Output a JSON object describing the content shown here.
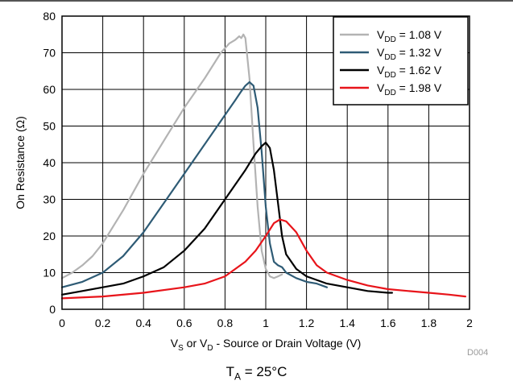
{
  "chart_data": {
    "type": "line",
    "xlabel": {
      "prefix_sym1": "V",
      "sub1": "S",
      "middle": " or ",
      "prefix_sym2": "V",
      "sub2": "D",
      "suffix": " - Source or Drain Voltage (V)"
    },
    "ylabel": "On Resistance (Ω)",
    "xlim": [
      0,
      2
    ],
    "ylim": [
      0,
      80
    ],
    "x_ticks": [
      "0",
      "0.2",
      "0.4",
      "0.6",
      "0.8",
      "1",
      "1.2",
      "1.4",
      "1.6",
      "1.8",
      "2"
    ],
    "y_ticks": [
      "0",
      "10",
      "20",
      "30",
      "40",
      "50",
      "60",
      "70",
      "80"
    ],
    "grid": true,
    "legend_position": "top-right",
    "series": [
      {
        "name_sym": "V",
        "name_sub": "DD",
        "name_val": " = 1.08 V",
        "color": "#b3b3b3",
        "points": [
          [
            0,
            8.5
          ],
          [
            0.05,
            10
          ],
          [
            0.1,
            12
          ],
          [
            0.15,
            14.5
          ],
          [
            0.2,
            18
          ],
          [
            0.3,
            27
          ],
          [
            0.4,
            37
          ],
          [
            0.5,
            46
          ],
          [
            0.6,
            55
          ],
          [
            0.7,
            63
          ],
          [
            0.78,
            70
          ],
          [
            0.82,
            72.5
          ],
          [
            0.85,
            73.5
          ],
          [
            0.87,
            74.5
          ],
          [
            0.88,
            74
          ],
          [
            0.89,
            75
          ],
          [
            0.9,
            74
          ],
          [
            0.92,
            63
          ],
          [
            0.94,
            45
          ],
          [
            0.96,
            28
          ],
          [
            0.98,
            16
          ],
          [
            1.0,
            11
          ],
          [
            1.02,
            9
          ],
          [
            1.04,
            8.5
          ],
          [
            1.06,
            9
          ],
          [
            1.08,
            9.5
          ]
        ]
      },
      {
        "name_sym": "V",
        "name_sub": "DD",
        "name_val": " = 1.32 V",
        "color": "#2e5b75",
        "points": [
          [
            0,
            6
          ],
          [
            0.1,
            7.5
          ],
          [
            0.2,
            10
          ],
          [
            0.3,
            14.5
          ],
          [
            0.4,
            21
          ],
          [
            0.5,
            29
          ],
          [
            0.6,
            37
          ],
          [
            0.7,
            45
          ],
          [
            0.8,
            53
          ],
          [
            0.85,
            57
          ],
          [
            0.88,
            59.5
          ],
          [
            0.9,
            61
          ],
          [
            0.92,
            62
          ],
          [
            0.94,
            61
          ],
          [
            0.96,
            55
          ],
          [
            0.98,
            43
          ],
          [
            1.0,
            28
          ],
          [
            1.02,
            18
          ],
          [
            1.04,
            13
          ],
          [
            1.06,
            12
          ],
          [
            1.08,
            11.5
          ],
          [
            1.1,
            10
          ],
          [
            1.15,
            8.5
          ],
          [
            1.2,
            7.5
          ],
          [
            1.25,
            7
          ],
          [
            1.3,
            6
          ]
        ]
      },
      {
        "name_sym": "V",
        "name_sub": "DD",
        "name_val": " = 1.62 V",
        "color": "#000000",
        "points": [
          [
            0,
            4
          ],
          [
            0.1,
            5
          ],
          [
            0.2,
            6
          ],
          [
            0.3,
            7
          ],
          [
            0.4,
            9
          ],
          [
            0.5,
            11.5
          ],
          [
            0.6,
            16
          ],
          [
            0.7,
            22
          ],
          [
            0.8,
            30
          ],
          [
            0.9,
            38
          ],
          [
            0.95,
            42.5
          ],
          [
            0.98,
            44.5
          ],
          [
            1.0,
            45.5
          ],
          [
            1.02,
            44
          ],
          [
            1.04,
            38
          ],
          [
            1.06,
            29
          ],
          [
            1.08,
            20
          ],
          [
            1.1,
            15
          ],
          [
            1.15,
            11
          ],
          [
            1.2,
            9
          ],
          [
            1.3,
            7
          ],
          [
            1.4,
            6
          ],
          [
            1.5,
            5
          ],
          [
            1.6,
            4.5
          ],
          [
            1.62,
            4.5
          ]
        ]
      },
      {
        "name_sym": "V",
        "name_sub": "DD",
        "name_val": " = 1.98 V",
        "color": "#e8141a",
        "points": [
          [
            0,
            3
          ],
          [
            0.2,
            3.5
          ],
          [
            0.4,
            4.5
          ],
          [
            0.6,
            6
          ],
          [
            0.7,
            7
          ],
          [
            0.8,
            9
          ],
          [
            0.9,
            13
          ],
          [
            0.95,
            16
          ],
          [
            1.0,
            20
          ],
          [
            1.04,
            23.5
          ],
          [
            1.07,
            24.5
          ],
          [
            1.1,
            24
          ],
          [
            1.15,
            21
          ],
          [
            1.2,
            16
          ],
          [
            1.25,
            12
          ],
          [
            1.3,
            10
          ],
          [
            1.4,
            8
          ],
          [
            1.5,
            6.5
          ],
          [
            1.6,
            5.5
          ],
          [
            1.7,
            5
          ],
          [
            1.8,
            4.5
          ],
          [
            1.9,
            4
          ],
          [
            1.98,
            3.5
          ]
        ]
      }
    ]
  },
  "figure_code": "D004",
  "caption": {
    "sym": "T",
    "sub": "A",
    "rest": " = 25°C"
  }
}
